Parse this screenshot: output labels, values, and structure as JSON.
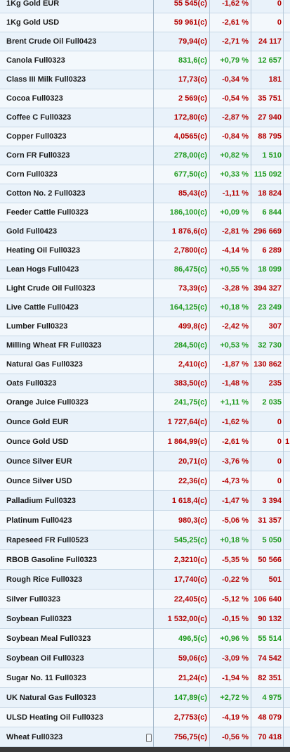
{
  "table": {
    "rows": [
      {
        "name": "1Kg Gold EUR",
        "price": "55 545(c)",
        "change": "-1,62 %",
        "volume": "0",
        "color": "#b40000"
      },
      {
        "name": "1Kg Gold USD",
        "price": "59 961(c)",
        "change": "-2,61 %",
        "volume": "0",
        "color": "#b40000"
      },
      {
        "name": "Brent Crude Oil Full0423",
        "price": "79,94(c)",
        "change": "-2,71 %",
        "volume": "24 117",
        "color": "#b40000"
      },
      {
        "name": "Canola Full0323",
        "price": "831,6(c)",
        "change": "+0,79 %",
        "volume": "12 657",
        "color": "#1f9a1f"
      },
      {
        "name": "Class III Milk Full0323",
        "price": "17,73(c)",
        "change": "-0,34 %",
        "volume": "181",
        "color": "#b40000"
      },
      {
        "name": "Cocoa Full0323",
        "price": "2 569(c)",
        "change": "-0,54 %",
        "volume": "35 751",
        "color": "#b40000"
      },
      {
        "name": "Coffee C Full0323",
        "price": "172,80(c)",
        "change": "-2,87 %",
        "volume": "27 940",
        "color": "#b40000"
      },
      {
        "name": "Copper Full0323",
        "price": "4,0565(c)",
        "change": "-0,84 %",
        "volume": "88 795",
        "color": "#b40000"
      },
      {
        "name": "Corn FR Full0323",
        "price": "278,00(c)",
        "change": "+0,82 %",
        "volume": "1 510",
        "color": "#1f9a1f"
      },
      {
        "name": "Corn Full0323",
        "price": "677,50(c)",
        "change": "+0,33 %",
        "volume": "115 092",
        "color": "#1f9a1f"
      },
      {
        "name": "Cotton No. 2 Full0323",
        "price": "85,43(c)",
        "change": "-1,11 %",
        "volume": "18 824",
        "color": "#b40000"
      },
      {
        "name": "Feeder Cattle Full0323",
        "price": "186,100(c)",
        "change": "+0,09 %",
        "volume": "6 844",
        "color": "#1f9a1f"
      },
      {
        "name": "Gold Full0423",
        "price": "1 876,6(c)",
        "change": "-2,81 %",
        "volume": "296 669",
        "color": "#b40000"
      },
      {
        "name": "Heating Oil Full0323",
        "price": "2,7800(c)",
        "change": "-4,14 %",
        "volume": "6 289",
        "color": "#b40000"
      },
      {
        "name": "Lean Hogs Full0423",
        "price": "86,475(c)",
        "change": "+0,55 %",
        "volume": "18 099",
        "color": "#1f9a1f"
      },
      {
        "name": "Light Crude Oil Full0323",
        "price": "73,39(c)",
        "change": "-3,28 %",
        "volume": "394 327",
        "color": "#b40000"
      },
      {
        "name": "Live Cattle Full0423",
        "price": "164,125(c)",
        "change": "+0,18 %",
        "volume": "23 249",
        "color": "#1f9a1f"
      },
      {
        "name": "Lumber Full0323",
        "price": "499,8(c)",
        "change": "-2,42 %",
        "volume": "307",
        "color": "#b40000"
      },
      {
        "name": "Milling Wheat FR Full0323",
        "price": "284,50(c)",
        "change": "+0,53 %",
        "volume": "32 730",
        "color": "#1f9a1f"
      },
      {
        "name": "Natural Gas Full0323",
        "price": "2,410(c)",
        "change": "-1,87 %",
        "volume": "130 862",
        "color": "#b40000"
      },
      {
        "name": "Oats Full0323",
        "price": "383,50(c)",
        "change": "-1,48 %",
        "volume": "235",
        "color": "#b40000"
      },
      {
        "name": "Orange Juice Full0323",
        "price": "241,75(c)",
        "change": "+1,11 %",
        "volume": "2 035",
        "color": "#1f9a1f"
      },
      {
        "name": "Ounce Gold EUR",
        "price": "1 727,64(c)",
        "change": "-1,62 %",
        "volume": "0",
        "color": "#b40000"
      },
      {
        "name": "Ounce Gold USD",
        "price": "1 864,99(c)",
        "change": "-2,61 %",
        "volume": "0",
        "extra": "1",
        "color": "#b40000"
      },
      {
        "name": "Ounce Silver EUR",
        "price": "20,71(c)",
        "change": "-3,76 %",
        "volume": "0",
        "color": "#b40000"
      },
      {
        "name": "Ounce Silver USD",
        "price": "22,36(c)",
        "change": "-4,73 %",
        "volume": "0",
        "color": "#b40000"
      },
      {
        "name": "Palladium Full0323",
        "price": "1 618,4(c)",
        "change": "-1,47 %",
        "volume": "3 394",
        "color": "#b40000"
      },
      {
        "name": "Platinum Full0423",
        "price": "980,3(c)",
        "change": "-5,06 %",
        "volume": "31 357",
        "color": "#b40000"
      },
      {
        "name": "Rapeseed FR Full0523",
        "price": "545,25(c)",
        "change": "+0,18 %",
        "volume": "5 050",
        "color": "#1f9a1f"
      },
      {
        "name": "RBOB Gasoline Full0323",
        "price": "2,3210(c)",
        "change": "-5,35 %",
        "volume": "50 566",
        "color": "#b40000"
      },
      {
        "name": "Rough Rice Full0323",
        "price": "17,740(c)",
        "change": "-0,22 %",
        "volume": "501",
        "color": "#b40000"
      },
      {
        "name": "Silver Full0323",
        "price": "22,405(c)",
        "change": "-5,12 %",
        "volume": "106 640",
        "color": "#b40000"
      },
      {
        "name": "Soybean Full0323",
        "price": "1 532,00(c)",
        "change": "-0,15 %",
        "volume": "90 132",
        "color": "#b40000"
      },
      {
        "name": "Soybean Meal Full0323",
        "price": "496,5(c)",
        "change": "+0,96 %",
        "volume": "55 514",
        "color": "#1f9a1f"
      },
      {
        "name": "Soybean Oil Full0323",
        "price": "59,06(c)",
        "change": "-3,09 %",
        "volume": "74 542",
        "color": "#b40000"
      },
      {
        "name": "Sugar No. 11 Full0323",
        "price": "21,24(c)",
        "change": "-1,94 %",
        "volume": "82 351",
        "color": "#b40000"
      },
      {
        "name": "UK Natural Gas Full0323",
        "price": "147,89(c)",
        "change": "+2,72 %",
        "volume": "4 975",
        "color": "#1f9a1f"
      },
      {
        "name": "ULSD Heating Oil Full0323",
        "price": "2,7753(c)",
        "change": "-4,19 %",
        "volume": "48 079",
        "color": "#b40000"
      },
      {
        "name": "Wheat Full0323",
        "price": "756,75(c)",
        "change": "-0,56 %",
        "volume": "70 418",
        "color": "#b40000"
      }
    ]
  }
}
